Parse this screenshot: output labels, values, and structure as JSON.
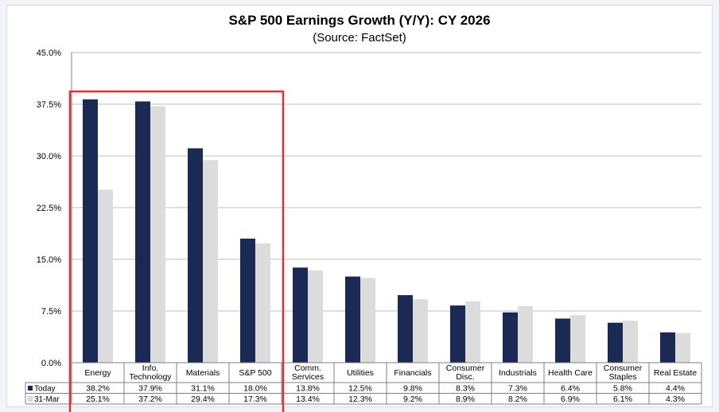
{
  "chart_data": {
    "type": "bar",
    "title": "S&P 500 Earnings Growth (Y/Y): CY 2026",
    "subtitle": "(Source: FactSet)",
    "categories": [
      [
        "Energy"
      ],
      [
        "Info.",
        "Technology"
      ],
      [
        "Materials"
      ],
      [
        "S&P 500"
      ],
      [
        "Comm.",
        "Services"
      ],
      [
        "Utilities"
      ],
      [
        "Financials"
      ],
      [
        "Consumer",
        "Disc."
      ],
      [
        "Industrials"
      ],
      [
        "Health Care"
      ],
      [
        "Consumer",
        "Staples"
      ],
      [
        "Real Estate"
      ]
    ],
    "series": [
      {
        "name": "Today",
        "color": "#1b2a55",
        "values": [
          38.2,
          37.9,
          31.1,
          18.0,
          13.8,
          12.5,
          9.8,
          8.3,
          7.3,
          6.4,
          5.8,
          4.4
        ],
        "labels": [
          "38.2%",
          "37.9%",
          "31.1%",
          "18.0%",
          "13.8%",
          "12.5%",
          "9.8%",
          "8.3%",
          "7.3%",
          "6.4%",
          "5.8%",
          "4.4%"
        ]
      },
      {
        "name": "31-Mar",
        "color": "#dcdcdc",
        "values": [
          25.1,
          37.2,
          29.4,
          17.3,
          13.4,
          12.3,
          9.2,
          8.9,
          8.2,
          6.9,
          6.1,
          4.3
        ],
        "labels": [
          "25.1%",
          "37.2%",
          "29.4%",
          "17.3%",
          "13.4%",
          "12.3%",
          "9.2%",
          "8.9%",
          "8.2%",
          "6.9%",
          "6.1%",
          "4.3%"
        ]
      }
    ],
    "ylim": [
      0,
      45
    ],
    "yticks": [
      "0.0%",
      "7.5%",
      "15.0%",
      "22.5%",
      "30.0%",
      "37.5%",
      "45.0%"
    ],
    "ytick_values": [
      0,
      7.5,
      15,
      22.5,
      30,
      37.5,
      45
    ],
    "grid": true,
    "legend": "data-table",
    "highlight": {
      "from_index": 0,
      "to_index": 3,
      "color": "#e03030"
    }
  }
}
